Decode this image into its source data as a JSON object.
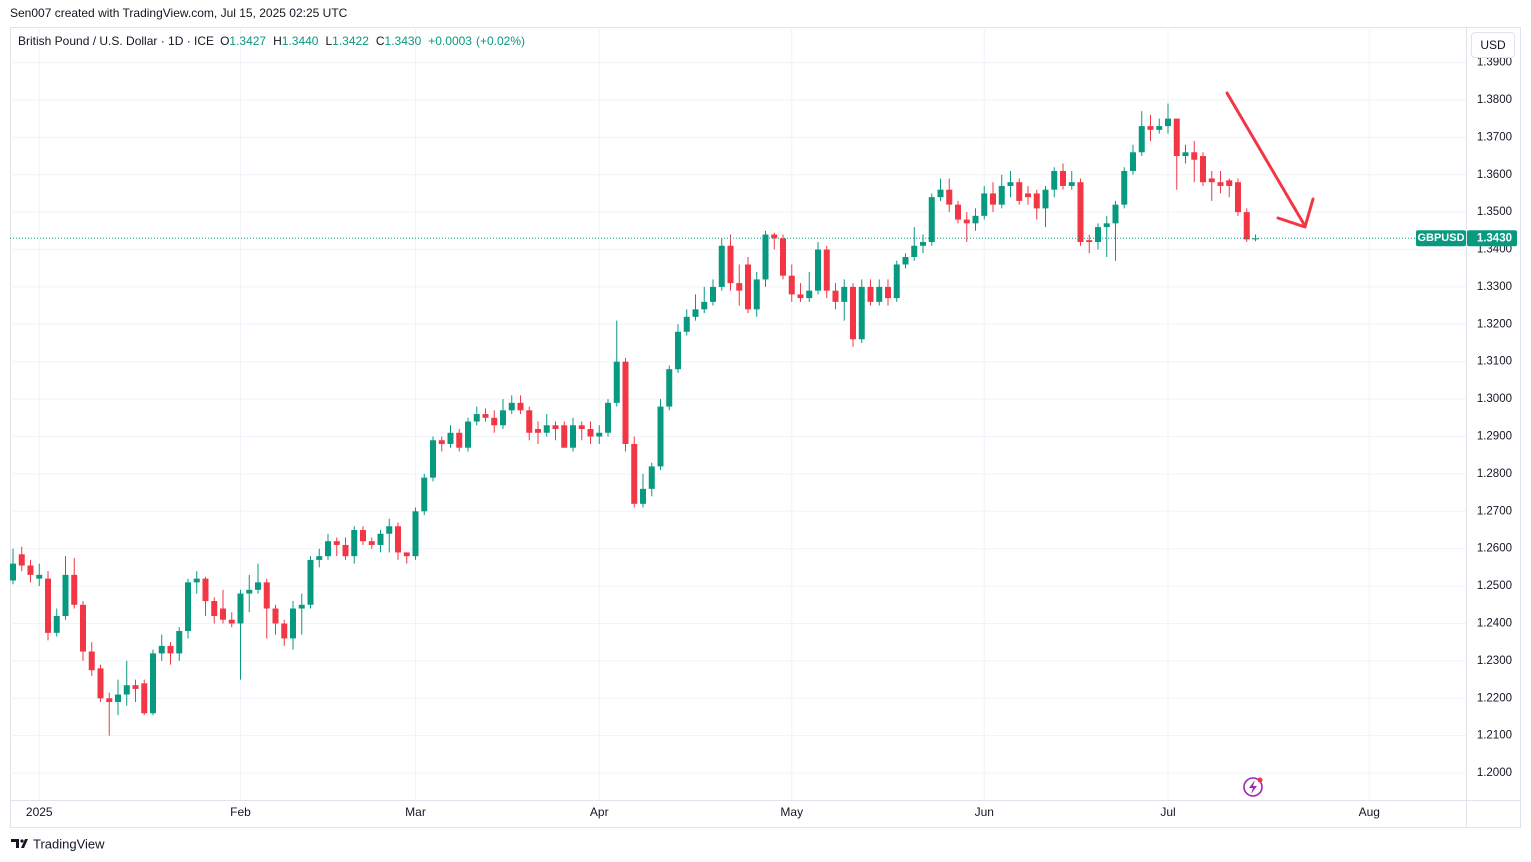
{
  "chart_data": {
    "type": "candlestick",
    "attribution": "Sen007 created with TradingView.com, Jul 15, 2025 02:25 UTC",
    "instrument": "British Pound / U.S. Dollar · 1D · ICE",
    "symbol": "GBPUSD",
    "currency": "USD",
    "footer_brand": "TradingView",
    "ohlc_labels": [
      "O",
      "H",
      "L",
      "C"
    ],
    "ohlc_values": [
      {
        "value": 1.3427,
        "label": "1.3427"
      },
      {
        "value": 1.344,
        "label": "1.3440"
      },
      {
        "value": 1.3422,
        "label": "1.3422"
      },
      {
        "value": 1.343,
        "label": "1.3430"
      }
    ],
    "change": {
      "value": 0.0003,
      "label": "+0.0003"
    },
    "change_pct": {
      "value": 0.02,
      "label": "(+0.02%)"
    },
    "last_price": {
      "value": 1.343,
      "label": "1.3430"
    },
    "colors": {
      "up": "#089981",
      "down": "#f23645"
    },
    "grid": true,
    "ylim": [
      1.1928,
      1.3995
    ],
    "yticks": [
      {
        "value": 1.2,
        "label": "1.2000"
      },
      {
        "value": 1.21,
        "label": "1.2100"
      },
      {
        "value": 1.22,
        "label": "1.2200"
      },
      {
        "value": 1.23,
        "label": "1.2300"
      },
      {
        "value": 1.24,
        "label": "1.2400"
      },
      {
        "value": 1.25,
        "label": "1.2500"
      },
      {
        "value": 1.26,
        "label": "1.2600"
      },
      {
        "value": 1.27,
        "label": "1.2700"
      },
      {
        "value": 1.28,
        "label": "1.2800"
      },
      {
        "value": 1.29,
        "label": "1.2900"
      },
      {
        "value": 1.3,
        "label": "1.3000"
      },
      {
        "value": 1.31,
        "label": "1.3100"
      },
      {
        "value": 1.32,
        "label": "1.3200"
      },
      {
        "value": 1.33,
        "label": "1.3300"
      },
      {
        "value": 1.34,
        "label": "1.3400"
      },
      {
        "value": 1.35,
        "label": "1.3500"
      },
      {
        "value": 1.36,
        "label": "1.3600"
      },
      {
        "value": 1.37,
        "label": "1.3700"
      },
      {
        "value": 1.38,
        "label": "1.3800"
      },
      {
        "value": 1.39,
        "label": "1.3900"
      }
    ],
    "categories": [
      null,
      null,
      null,
      "2025",
      null,
      null,
      null,
      null,
      null,
      null,
      null,
      null,
      null,
      null,
      null,
      null,
      null,
      null,
      null,
      null,
      null,
      null,
      null,
      null,
      null,
      null,
      "Feb",
      null,
      null,
      null,
      null,
      null,
      null,
      null,
      null,
      null,
      null,
      null,
      null,
      null,
      null,
      null,
      null,
      null,
      null,
      null,
      "Mar",
      null,
      null,
      null,
      null,
      null,
      null,
      null,
      null,
      null,
      null,
      null,
      null,
      null,
      null,
      null,
      null,
      null,
      null,
      null,
      null,
      "Apr",
      null,
      null,
      null,
      null,
      null,
      null,
      null,
      null,
      null,
      null,
      null,
      null,
      null,
      null,
      null,
      null,
      null,
      null,
      null,
      null,
      null,
      "May",
      null,
      null,
      null,
      null,
      null,
      null,
      null,
      null,
      null,
      null,
      null,
      null,
      null,
      null,
      null,
      null,
      null,
      null,
      null,
      null,
      null,
      "Jun",
      null,
      null,
      null,
      null,
      null,
      null,
      null,
      null,
      null,
      null,
      null,
      null,
      null,
      null,
      null,
      null,
      null,
      null,
      null,
      null,
      "Jul",
      null,
      null,
      null,
      null,
      null,
      null,
      null,
      null,
      null,
      null,
      null,
      null,
      null,
      null,
      null,
      null,
      null,
      null,
      null,
      null,
      null,
      null,
      "Aug",
      null,
      null,
      null,
      null,
      null,
      null,
      null,
      null,
      null,
      null
    ],
    "open": [
      1.2515,
      1.2585,
      1.2555,
      1.252,
      1.252,
      1.2375,
      1.242,
      1.253,
      1.245,
      1.2325,
      1.228,
      1.22,
      1.219,
      1.221,
      1.2235,
      1.224,
      1.216,
      1.232,
      1.234,
      1.232,
      1.238,
      1.251,
      1.252,
      1.246,
      1.244,
      1.241,
      1.24,
      1.248,
      1.249,
      1.251,
      1.244,
      1.24,
      1.236,
      1.244,
      1.245,
      1.257,
      1.258,
      1.262,
      1.261,
      1.258,
      1.265,
      1.262,
      1.261,
      1.264,
      1.266,
      1.259,
      1.258,
      1.27,
      1.279,
      1.289,
      1.288,
      1.291,
      1.287,
      1.294,
      1.296,
      1.295,
      1.293,
      1.297,
      1.299,
      1.297,
      1.292,
      1.291,
      1.293,
      1.293,
      1.287,
      1.293,
      1.292,
      1.29,
      1.291,
      1.299,
      1.31,
      1.288,
      1.272,
      1.276,
      1.282,
      1.298,
      1.308,
      1.318,
      1.322,
      1.324,
      1.326,
      1.33,
      1.341,
      1.331,
      1.336,
      1.324,
      1.332,
      1.344,
      1.343,
      1.333,
      1.328,
      1.327,
      1.329,
      1.34,
      1.329,
      1.326,
      1.33,
      1.316,
      1.33,
      1.326,
      1.33,
      1.327,
      1.336,
      1.338,
      1.341,
      1.342,
      1.354,
      1.356,
      1.352,
      1.348,
      1.347,
      1.349,
      1.355,
      1.352,
      1.357,
      1.358,
      1.355,
      1.355,
      1.351,
      1.356,
      1.361,
      1.357,
      1.358,
      1.3425,
      1.342,
      1.346,
      1.347,
      1.352,
      1.361,
      1.366,
      1.373,
      1.372,
      1.373,
      1.375,
      1.365,
      1.366,
      1.365,
      1.359,
      1.358,
      1.3585,
      1.358,
      1.35,
      1.3427,
      null,
      null,
      null,
      null,
      null,
      null,
      null,
      null,
      null,
      null,
      null,
      null,
      null,
      null,
      null,
      null,
      null,
      null,
      null,
      null,
      null,
      null,
      null
    ],
    "high": [
      1.26,
      1.2605,
      1.257,
      1.256,
      1.254,
      1.244,
      1.258,
      1.2575,
      1.246,
      1.235,
      1.229,
      1.2215,
      1.225,
      1.23,
      1.225,
      1.225,
      1.233,
      1.237,
      1.235,
      1.239,
      1.252,
      1.254,
      1.2525,
      1.247,
      1.249,
      1.243,
      1.249,
      1.253,
      1.256,
      1.252,
      1.245,
      1.241,
      1.246,
      1.248,
      1.258,
      1.26,
      1.264,
      1.263,
      1.263,
      1.266,
      1.266,
      1.263,
      1.265,
      1.268,
      1.267,
      1.259,
      1.271,
      1.28,
      1.29,
      1.29,
      1.293,
      1.292,
      1.295,
      1.298,
      1.2975,
      1.297,
      1.3,
      1.301,
      1.301,
      1.298,
      1.294,
      1.296,
      1.294,
      1.294,
      1.295,
      1.294,
      1.294,
      1.293,
      1.3,
      1.321,
      1.311,
      1.29,
      1.28,
      1.283,
      1.3,
      1.309,
      1.32,
      1.324,
      1.328,
      1.33,
      1.332,
      1.343,
      1.344,
      1.336,
      1.338,
      1.334,
      1.345,
      1.3445,
      1.344,
      1.336,
      1.331,
      1.334,
      1.342,
      1.341,
      1.331,
      1.332,
      1.331,
      1.332,
      1.332,
      1.332,
      1.332,
      1.337,
      1.339,
      1.346,
      1.344,
      1.355,
      1.359,
      1.359,
      1.353,
      1.35,
      1.351,
      1.357,
      1.358,
      1.36,
      1.361,
      1.359,
      1.357,
      1.356,
      1.357,
      1.362,
      1.363,
      1.361,
      1.359,
      1.344,
      1.347,
      1.349,
      1.353,
      1.362,
      1.368,
      1.377,
      1.376,
      1.375,
      1.379,
      1.375,
      1.368,
      1.369,
      1.366,
      1.361,
      1.361,
      1.359,
      1.359,
      1.351,
      1.344,
      null,
      null,
      null,
      null,
      null,
      null,
      null,
      null,
      null,
      null,
      null,
      null,
      null,
      null,
      null,
      null,
      null,
      null,
      null,
      null,
      null,
      null,
      null
    ],
    "low": [
      1.2505,
      1.254,
      1.251,
      1.25,
      1.2355,
      1.2365,
      1.241,
      1.244,
      1.23,
      1.226,
      1.219,
      1.21,
      1.2155,
      1.218,
      1.219,
      1.2155,
      1.2155,
      1.23,
      1.229,
      1.23,
      1.236,
      1.248,
      1.242,
      1.24,
      1.24,
      1.239,
      1.225,
      1.243,
      1.248,
      1.236,
      1.237,
      1.234,
      1.233,
      1.237,
      1.244,
      1.255,
      1.257,
      1.258,
      1.257,
      1.256,
      1.261,
      1.26,
      1.259,
      1.259,
      1.257,
      1.256,
      1.257,
      1.269,
      1.278,
      1.286,
      1.287,
      1.286,
      1.286,
      1.293,
      1.294,
      1.291,
      1.292,
      1.296,
      1.296,
      1.289,
      1.288,
      1.29,
      1.289,
      1.287,
      1.286,
      1.289,
      1.288,
      1.288,
      1.29,
      1.298,
      1.286,
      1.271,
      1.271,
      1.274,
      1.281,
      1.297,
      1.307,
      1.317,
      1.321,
      1.323,
      1.325,
      1.329,
      1.329,
      1.325,
      1.323,
      1.322,
      1.33,
      1.34,
      1.332,
      1.326,
      1.326,
      1.326,
      1.328,
      1.327,
      1.324,
      1.321,
      1.314,
      1.315,
      1.325,
      1.325,
      1.325,
      1.326,
      1.335,
      1.337,
      1.339,
      1.341,
      1.353,
      1.35,
      1.347,
      1.342,
      1.345,
      1.348,
      1.35,
      1.351,
      1.354,
      1.352,
      1.352,
      1.348,
      1.346,
      1.354,
      1.356,
      1.356,
      1.341,
      1.339,
      1.34,
      1.338,
      1.337,
      1.351,
      1.36,
      1.365,
      1.369,
      1.371,
      1.371,
      1.356,
      1.363,
      1.358,
      1.357,
      1.353,
      1.355,
      1.354,
      1.349,
      1.342,
      1.3422,
      null,
      null,
      null,
      null,
      null,
      null,
      null,
      null,
      null,
      null,
      null,
      null,
      null,
      null,
      null,
      null,
      null,
      null,
      null,
      null,
      null,
      null,
      null
    ],
    "close": [
      1.256,
      1.2555,
      1.253,
      1.253,
      1.2375,
      1.242,
      1.253,
      1.245,
      1.2325,
      1.2275,
      1.22,
      1.219,
      1.221,
      1.2235,
      1.2225,
      1.216,
      1.232,
      1.234,
      1.232,
      1.238,
      1.251,
      1.252,
      1.246,
      1.242,
      1.241,
      1.24,
      1.248,
      1.249,
      1.251,
      1.244,
      1.24,
      1.236,
      1.244,
      1.245,
      1.257,
      1.258,
      1.262,
      1.261,
      1.258,
      1.265,
      1.262,
      1.261,
      1.264,
      1.266,
      1.259,
      1.258,
      1.27,
      1.279,
      1.289,
      1.288,
      1.291,
      1.287,
      1.294,
      1.296,
      1.295,
      1.293,
      1.297,
      1.299,
      1.297,
      1.291,
      1.291,
      1.293,
      1.292,
      1.287,
      1.293,
      1.292,
      1.29,
      1.291,
      1.299,
      1.31,
      1.288,
      1.272,
      1.276,
      1.282,
      1.298,
      1.308,
      1.318,
      1.322,
      1.324,
      1.326,
      1.33,
      1.341,
      1.331,
      1.329,
      1.324,
      1.332,
      1.344,
      1.343,
      1.333,
      1.328,
      1.327,
      1.329,
      1.34,
      1.329,
      1.326,
      1.33,
      1.316,
      1.33,
      1.326,
      1.33,
      1.327,
      1.336,
      1.338,
      1.341,
      1.342,
      1.354,
      1.356,
      1.352,
      1.348,
      1.347,
      1.349,
      1.355,
      1.352,
      1.357,
      1.358,
      1.353,
      1.354,
      1.351,
      1.356,
      1.361,
      1.357,
      1.358,
      1.342,
      1.342,
      1.346,
      1.347,
      1.352,
      1.361,
      1.366,
      1.373,
      1.372,
      1.373,
      1.375,
      1.365,
      1.366,
      1.364,
      1.358,
      1.358,
      1.357,
      1.357,
      1.35,
      1.3427,
      1.343,
      null,
      null,
      null,
      null,
      null,
      null,
      null,
      null,
      null,
      null,
      null,
      null,
      null,
      null,
      null,
      null,
      null,
      null,
      null,
      null,
      null,
      null,
      null
    ]
  }
}
